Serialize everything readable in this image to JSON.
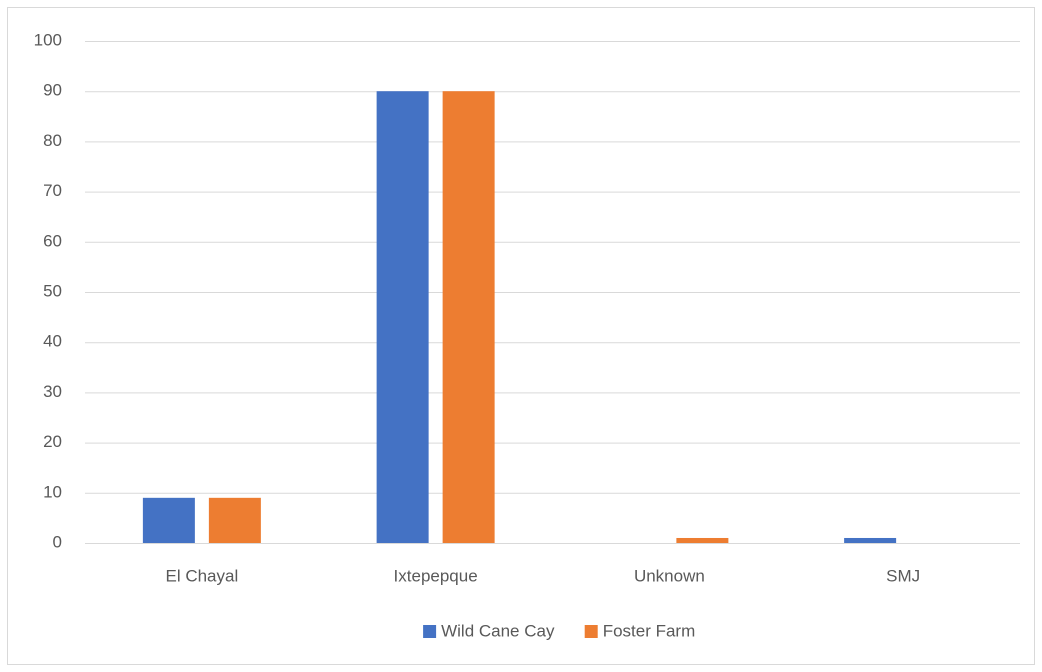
{
  "chart_data": {
    "type": "bar",
    "categories": [
      "El Chayal",
      "Ixtepepque",
      "Unknown",
      "SMJ"
    ],
    "series": [
      {
        "name": "Wild Cane Cay",
        "color": "#4472c4",
        "values": [
          9,
          90,
          0,
          1
        ]
      },
      {
        "name": "Foster Farm",
        "color": "#ed7d31",
        "values": [
          9,
          90,
          1,
          0
        ]
      }
    ],
    "ylim": [
      0,
      100
    ],
    "yticks": [
      0,
      10,
      20,
      30,
      40,
      50,
      60,
      70,
      80,
      90,
      100
    ],
    "grid": true,
    "legend": "bottom"
  }
}
